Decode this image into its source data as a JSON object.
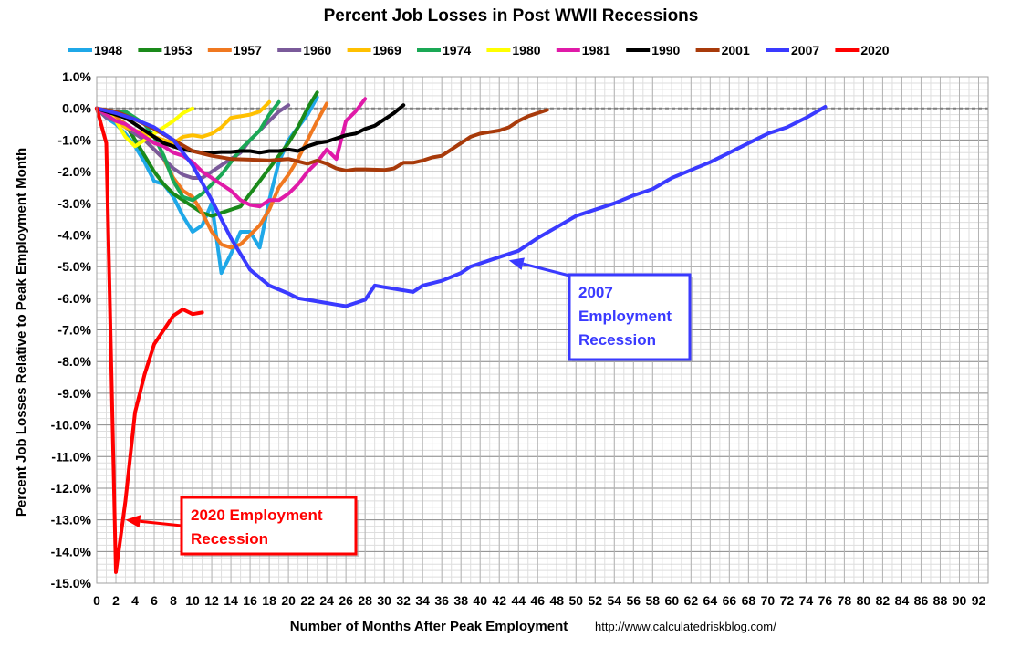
{
  "chart_data": {
    "type": "line",
    "title": "Percent Job Losses in Post WWII Recessions",
    "xlabel": "Number of Months After Peak Employment",
    "ylabel": "Percent Job Losses Relative to Peak Employment Month",
    "source": "http://www.calculatedriskblog.com/",
    "xlim": [
      0,
      93
    ],
    "ylim": [
      -15,
      1
    ],
    "x_ticks": [
      0,
      2,
      4,
      6,
      8,
      10,
      12,
      14,
      16,
      18,
      20,
      22,
      24,
      26,
      28,
      30,
      32,
      34,
      36,
      38,
      40,
      42,
      44,
      46,
      48,
      50,
      52,
      54,
      56,
      58,
      60,
      62,
      64,
      66,
      68,
      70,
      72,
      74,
      76,
      78,
      80,
      82,
      84,
      86,
      88,
      90,
      92
    ],
    "y_ticks": [
      1,
      0,
      -1,
      -2,
      -3,
      -4,
      -5,
      -6,
      -7,
      -8,
      -9,
      -10,
      -11,
      -12,
      -13,
      -14,
      -15
    ],
    "y_tick_labels": [
      "1.0%",
      "0.0%",
      "-1.0%",
      "-2.0%",
      "-3.0%",
      "-4.0%",
      "-5.0%",
      "-6.0%",
      "-7.0%",
      "-8.0%",
      "-9.0%",
      "-10.0%",
      "-11.0%",
      "-12.0%",
      "-13.0%",
      "-14.0%",
      "-15.0%"
    ],
    "grid": true,
    "legend_position": "top",
    "series": [
      {
        "name": "1948",
        "color": "#1fa8e8",
        "x": [
          0,
          1,
          2,
          3,
          4,
          5,
          6,
          7,
          8,
          9,
          10,
          11,
          12,
          13,
          14,
          15,
          16,
          17,
          18,
          19,
          20,
          21,
          22,
          23
        ],
        "y": [
          0,
          -0.3,
          -0.5,
          -0.8,
          -1.2,
          -1.7,
          -2.3,
          -2.4,
          -2.8,
          -3.4,
          -3.9,
          -3.7,
          -3.0,
          -5.2,
          -4.6,
          -3.9,
          -3.9,
          -4.4,
          -2.9,
          -1.7,
          -1.0,
          -0.6,
          -0.2,
          0.35
        ]
      },
      {
        "name": "1953",
        "color": "#1a8a1a",
        "x": [
          0,
          1,
          2,
          3,
          4,
          5,
          6,
          7,
          8,
          9,
          10,
          11,
          12,
          13,
          14,
          15,
          16,
          17,
          18,
          19,
          20,
          21,
          22,
          23
        ],
        "y": [
          0,
          -0.2,
          -0.3,
          -0.5,
          -1.0,
          -1.5,
          -2.0,
          -2.4,
          -2.7,
          -2.9,
          -3.1,
          -3.3,
          -3.4,
          -3.3,
          -3.2,
          -3.1,
          -2.7,
          -2.3,
          -1.9,
          -1.5,
          -1.1,
          -0.6,
          0.0,
          0.5
        ]
      },
      {
        "name": "1957",
        "color": "#f07820",
        "x": [
          0,
          1,
          2,
          3,
          4,
          5,
          6,
          7,
          8,
          9,
          10,
          11,
          12,
          13,
          14,
          15,
          16,
          17,
          18,
          19,
          20,
          21,
          22,
          23,
          24
        ],
        "y": [
          0,
          -0.2,
          -0.3,
          -0.5,
          -0.8,
          -1.0,
          -1.3,
          -1.6,
          -2.2,
          -2.6,
          -2.8,
          -3.3,
          -3.9,
          -4.3,
          -4.4,
          -4.3,
          -4.0,
          -3.7,
          -3.2,
          -2.5,
          -2.1,
          -1.6,
          -1.0,
          -0.4,
          0.15
        ]
      },
      {
        "name": "1960",
        "color": "#7a5a9a",
        "x": [
          0,
          1,
          2,
          3,
          4,
          5,
          6,
          7,
          8,
          9,
          10,
          11,
          12,
          13,
          14,
          15,
          16,
          17,
          18,
          19,
          20
        ],
        "y": [
          0,
          -0.3,
          -0.4,
          -0.6,
          -0.8,
          -1.0,
          -1.3,
          -1.6,
          -1.9,
          -2.1,
          -2.2,
          -2.2,
          -2.0,
          -1.8,
          -1.6,
          -1.4,
          -1.0,
          -0.7,
          -0.4,
          -0.1,
          0.1
        ]
      },
      {
        "name": "1969",
        "color": "#ffc000",
        "x": [
          0,
          1,
          2,
          3,
          4,
          5,
          6,
          7,
          8,
          9,
          10,
          11,
          12,
          13,
          14,
          15,
          16,
          17,
          18
        ],
        "y": [
          0,
          -0.2,
          -0.4,
          -0.6,
          -0.7,
          -0.8,
          -0.9,
          -1.0,
          -1.1,
          -0.9,
          -0.85,
          -0.9,
          -0.8,
          -0.6,
          -0.3,
          -0.25,
          -0.2,
          -0.1,
          0.2
        ]
      },
      {
        "name": "1974",
        "color": "#1aa855",
        "x": [
          0,
          1,
          2,
          3,
          4,
          5,
          6,
          7,
          8,
          9,
          10,
          11,
          12,
          13,
          14,
          15,
          16,
          17,
          18,
          19
        ],
        "y": [
          0,
          -0.1,
          -0.1,
          -0.1,
          -0.3,
          -0.5,
          -0.9,
          -1.5,
          -2.3,
          -2.8,
          -2.9,
          -2.7,
          -2.4,
          -2.1,
          -1.7,
          -1.3,
          -1.0,
          -0.7,
          -0.2,
          0.2
        ]
      },
      {
        "name": "1980",
        "color": "#ffff00",
        "x": [
          0,
          1,
          2,
          3,
          4,
          5,
          6,
          7,
          8,
          9,
          10
        ],
        "y": [
          0,
          -0.1,
          -0.4,
          -0.9,
          -1.2,
          -1.0,
          -0.8,
          -0.6,
          -0.4,
          -0.15,
          0.0
        ]
      },
      {
        "name": "1981",
        "color": "#e01aa8",
        "x": [
          0,
          1,
          2,
          3,
          4,
          5,
          6,
          7,
          8,
          9,
          10,
          11,
          12,
          13,
          14,
          15,
          16,
          17,
          18,
          19,
          20,
          21,
          22,
          23,
          24,
          25,
          26,
          27,
          28
        ],
        "y": [
          0,
          -0.2,
          -0.4,
          -0.5,
          -0.7,
          -0.9,
          -1.1,
          -1.2,
          -1.4,
          -1.5,
          -1.7,
          -2.0,
          -2.2,
          -2.4,
          -2.6,
          -2.9,
          -3.05,
          -3.1,
          -2.9,
          -2.9,
          -2.7,
          -2.4,
          -2.0,
          -1.7,
          -1.3,
          -1.6,
          -0.4,
          -0.1,
          0.3
        ]
      },
      {
        "name": "1990",
        "color": "#000000",
        "x": [
          0,
          1,
          2,
          3,
          4,
          5,
          6,
          7,
          8,
          9,
          10,
          11,
          12,
          13,
          14,
          15,
          16,
          17,
          18,
          19,
          20,
          21,
          22,
          23,
          24,
          25,
          26,
          27,
          28,
          29,
          30,
          31,
          32
        ],
        "y": [
          0,
          -0.1,
          -0.2,
          -0.3,
          -0.5,
          -0.7,
          -0.9,
          -1.1,
          -1.2,
          -1.3,
          -1.35,
          -1.4,
          -1.4,
          -1.38,
          -1.38,
          -1.35,
          -1.35,
          -1.4,
          -1.35,
          -1.35,
          -1.3,
          -1.35,
          -1.2,
          -1.1,
          -1.05,
          -0.95,
          -0.85,
          -0.8,
          -0.65,
          -0.55,
          -0.35,
          -0.15,
          0.1
        ]
      },
      {
        "name": "2001",
        "color": "#a83a0a",
        "x": [
          0,
          2,
          4,
          6,
          8,
          10,
          12,
          14,
          16,
          18,
          20,
          22,
          23,
          24,
          25,
          26,
          27,
          28,
          30,
          31,
          32,
          33,
          34,
          35,
          36,
          37,
          38,
          39,
          40,
          41,
          42,
          43,
          44,
          45,
          46,
          47
        ],
        "y": [
          0,
          -0.1,
          -0.35,
          -0.65,
          -1.0,
          -1.35,
          -1.5,
          -1.6,
          -1.62,
          -1.65,
          -1.6,
          -1.75,
          -1.65,
          -1.75,
          -1.9,
          -1.97,
          -1.93,
          -1.93,
          -1.95,
          -1.9,
          -1.72,
          -1.72,
          -1.65,
          -1.55,
          -1.5,
          -1.3,
          -1.1,
          -0.9,
          -0.8,
          -0.75,
          -0.7,
          -0.6,
          -0.4,
          -0.25,
          -0.15,
          -0.05
        ]
      },
      {
        "name": "2007",
        "color": "#3a3aff",
        "x": [
          0,
          2,
          4,
          6,
          8,
          10,
          12,
          14,
          16,
          18,
          20,
          21,
          22,
          24,
          25,
          26,
          28,
          29,
          30,
          32,
          33,
          34,
          36,
          38,
          39,
          40,
          42,
          44,
          46,
          48,
          50,
          52,
          54,
          56,
          58,
          60,
          62,
          64,
          66,
          68,
          70,
          72,
          74,
          76
        ],
        "y": [
          0,
          -0.15,
          -0.35,
          -0.6,
          -1.0,
          -1.8,
          -2.9,
          -4.1,
          -5.1,
          -5.6,
          -5.85,
          -6.0,
          -6.05,
          -6.15,
          -6.2,
          -6.25,
          -6.05,
          -5.6,
          -5.65,
          -5.75,
          -5.8,
          -5.6,
          -5.45,
          -5.2,
          -5.0,
          -4.9,
          -4.7,
          -4.5,
          -4.1,
          -3.75,
          -3.4,
          -3.2,
          -3.0,
          -2.75,
          -2.55,
          -2.2,
          -1.95,
          -1.7,
          -1.4,
          -1.1,
          -0.8,
          -0.6,
          -0.3,
          0.05
        ]
      },
      {
        "name": "2020",
        "color": "#ff0000",
        "x": [
          0,
          1,
          2,
          3,
          4,
          5,
          6,
          7,
          8,
          9,
          10,
          11
        ],
        "y": [
          0,
          -1.1,
          -14.65,
          -12.4,
          -9.6,
          -8.4,
          -7.45,
          -7.0,
          -6.55,
          -6.35,
          -6.5,
          -6.45
        ]
      }
    ],
    "annotations": [
      {
        "lines": [
          "2007",
          "Employment",
          "Recession"
        ],
        "color": "#3a3aff",
        "arrow_to": [
          43,
          -4.8
        ]
      },
      {
        "lines": [
          "2020 Employment",
          "Recession"
        ],
        "color": "#ff0000",
        "arrow_to": [
          3,
          -13.0
        ]
      }
    ]
  }
}
